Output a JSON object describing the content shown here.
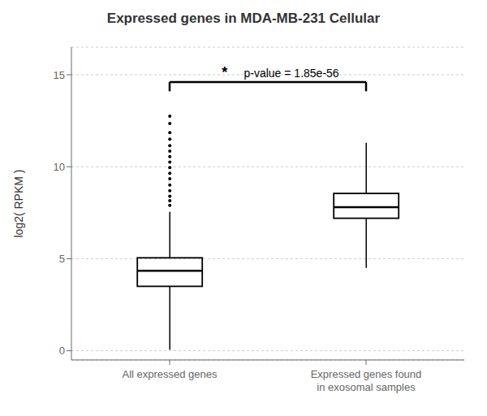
{
  "chart_data": {
    "type": "box",
    "title": "Expressed genes in MDA-MB-231 Cellular",
    "ylabel": "log2( RPKM )",
    "categories": [
      "All expressed genes",
      "Expressed genes found\nin exosomal samples"
    ],
    "boxes": [
      {
        "whisker_low": 0.05,
        "q1": 3.5,
        "median": 4.35,
        "q3": 5.05,
        "whisker_high": 7.55,
        "outliers": [
          7.9,
          8.15,
          8.4,
          8.7,
          9.0,
          9.35,
          9.65,
          9.95,
          10.25,
          10.55,
          10.85,
          11.15,
          11.5,
          11.85,
          12.35,
          12.75
        ]
      },
      {
        "whisker_low": 4.5,
        "q1": 7.2,
        "median": 7.8,
        "q3": 8.55,
        "whisker_high": 11.3,
        "outliers": []
      }
    ],
    "ylim": [
      -0.5,
      16.5
    ],
    "yticks": [
      0,
      5,
      10,
      15
    ],
    "grid": true,
    "color": "#000000",
    "bracket": {
      "y": 14.6,
      "drop_to": 14.1,
      "texts": [
        "*",
        "p-value = 1.85e-56"
      ]
    }
  }
}
